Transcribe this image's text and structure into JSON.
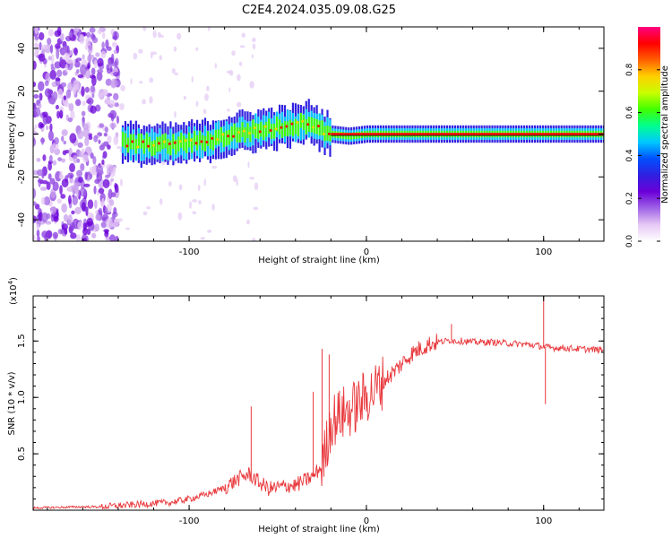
{
  "title": "C2E4.2024.035.09.08.G25",
  "chart_data": [
    {
      "type": "heatmap",
      "xlabel": "Height of straight line (km)",
      "ylabel": "Frequency (Hz)",
      "xlim": [
        -188,
        134
      ],
      "ylim": [
        -50,
        50
      ],
      "xticks": [
        -100,
        0,
        100
      ],
      "xtick_labels": [
        "-100",
        "0",
        "100"
      ],
      "yticks": [
        -40,
        -20,
        0,
        20,
        40
      ],
      "ytick_labels": [
        "-40",
        "-20",
        "0",
        "20",
        "40"
      ],
      "colorbar": {
        "label": "Normalized spectral amplitude",
        "range": [
          0.0,
          1.0
        ],
        "ticks": [
          0.0,
          0.2,
          0.4,
          0.6,
          0.8
        ],
        "tick_labels": [
          "0.0",
          "0.2",
          "0.4",
          "0.6",
          "0.8"
        ],
        "colors": [
          "#ffffff",
          "#e6c8f5",
          "#a064e6",
          "#6a00d8",
          "#3020e0",
          "#0050ff",
          "#00c8ff",
          "#00ff90",
          "#40ff00",
          "#c8ff00",
          "#ffd000",
          "#ff6000",
          "#ff0000",
          "#ff0080"
        ]
      },
      "signal_track": {
        "x": [
          -138,
          -125,
          -110,
          -100,
          -90,
          -80,
          -70,
          -60,
          -50,
          -40,
          -32,
          -25,
          -20,
          -10,
          0,
          10,
          40,
          100,
          134
        ],
        "y": [
          -4,
          -5,
          -5,
          -4,
          -3,
          -1,
          1,
          2,
          3,
          4,
          6,
          1,
          0,
          -1,
          0,
          0,
          0,
          0,
          0
        ]
      },
      "noise_region_x": [
        -188,
        -140
      ]
    },
    {
      "type": "line",
      "xlabel": "Height of straight line (km)",
      "ylabel": "SNR (10 * v/v)",
      "y_multiplier": "(x10",
      "y_multiplier_exp": "4",
      "y_multiplier_close": ")",
      "xlim": [
        -188,
        134
      ],
      "ylim": [
        0,
        1.9
      ],
      "xticks": [
        -100,
        0,
        100
      ],
      "xtick_labels": [
        "-100",
        "0",
        "100"
      ],
      "yticks": [
        0.5,
        1.0,
        1.5
      ],
      "ytick_labels": [
        "0.5",
        "1.0",
        "1.5"
      ],
      "color": "#e8383c",
      "series": [
        {
          "name": "SNR",
          "x": [
            -188,
            -160,
            -150,
            -140,
            -130,
            -120,
            -110,
            -100,
            -90,
            -80,
            -72,
            -66,
            -60,
            -55,
            -50,
            -44,
            -40,
            -35,
            -30,
            -26,
            -24,
            -22,
            -20,
            -17,
            -14,
            -10,
            -6,
            -2,
            0,
            5,
            10,
            15,
            20,
            25,
            30,
            35,
            40,
            45,
            48,
            50,
            55,
            60,
            70,
            80,
            90,
            96,
            100,
            104,
            110,
            120,
            134
          ],
          "y": [
            0.02,
            0.03,
            0.03,
            0.04,
            0.05,
            0.06,
            0.07,
            0.1,
            0.14,
            0.2,
            0.28,
            0.32,
            0.24,
            0.19,
            0.2,
            0.22,
            0.22,
            0.26,
            0.3,
            0.38,
            0.45,
            0.62,
            0.78,
            0.82,
            0.85,
            0.88,
            0.92,
            0.98,
            1.01,
            1.07,
            1.15,
            1.22,
            1.3,
            1.38,
            1.43,
            1.47,
            1.49,
            1.5,
            1.51,
            1.5,
            1.5,
            1.49,
            1.49,
            1.48,
            1.47,
            1.46,
            1.45,
            1.44,
            1.44,
            1.43,
            1.42
          ],
          "spikes": [
            {
              "x": -65,
              "y": 0.92
            },
            {
              "x": -30,
              "y": 1.05
            },
            {
              "x": -25,
              "y": 1.43
            },
            {
              "x": -21,
              "y": 1.38
            },
            {
              "x": 48,
              "y": 1.65
            },
            {
              "x": 100,
              "y": 1.88
            },
            {
              "x": 101,
              "y": 0.94
            }
          ]
        }
      ]
    }
  ]
}
